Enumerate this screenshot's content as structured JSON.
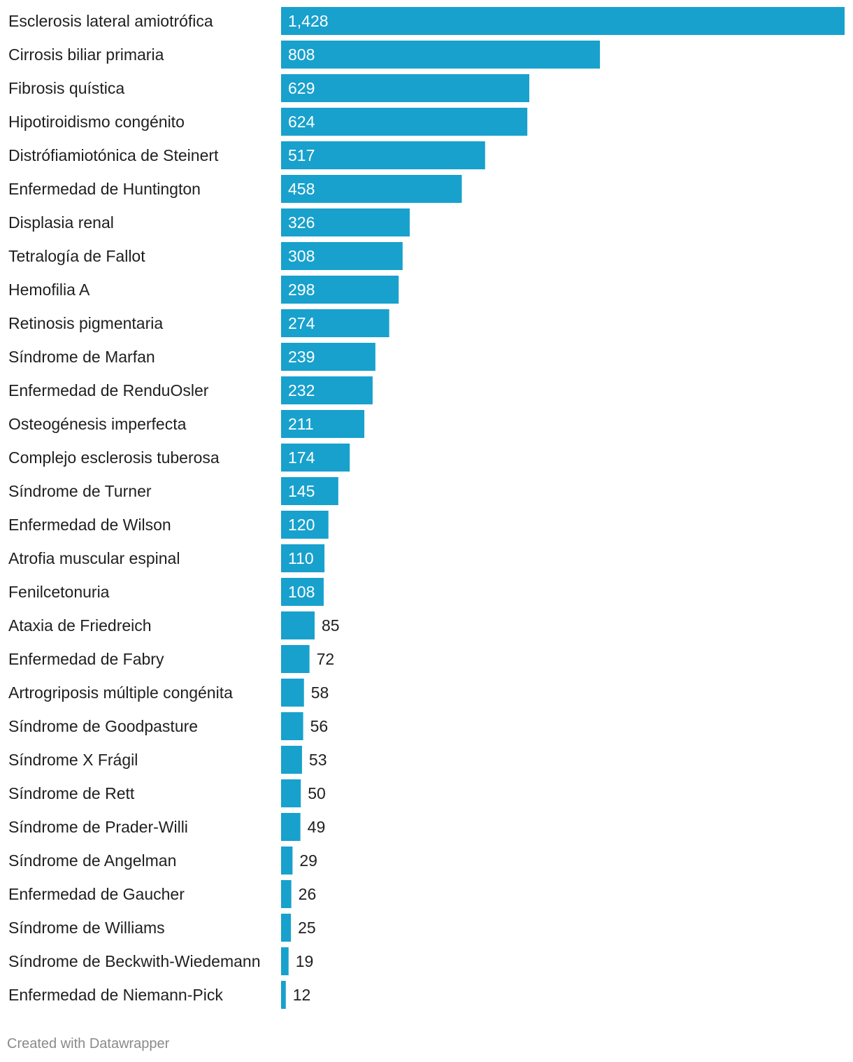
{
  "chart_data": {
    "type": "bar",
    "orientation": "horizontal",
    "categories": [
      "Esclerosis lateral amiotrófica",
      "Cirrosis biliar primaria",
      "Fibrosis quística",
      "Hipotiroidismo congénito",
      "Distrófiamiotónica de Steinert",
      "Enfermedad de Huntington",
      "Displasia renal",
      "Tetralogía de Fallot",
      "Hemofilia A",
      "Retinosis pigmentaria",
      "Síndrome de Marfan",
      "Enfermedad de RenduOsler",
      "Osteogénesis imperfecta",
      "Complejo esclerosis tuberosa",
      "Síndrome de Turner",
      "Enfermedad de Wilson",
      "Atrofia muscular espinal",
      "Fenilcetonuria",
      "Ataxia de Friedreich",
      "Enfermedad de Fabry",
      "Artrogriposis múltiple congénita",
      "Síndrome de Goodpasture",
      "Síndrome X Frágil",
      "Síndrome de Rett",
      "Síndrome de Prader-Willi",
      "Síndrome de Angelman",
      "Enfermedad de Gaucher",
      "Síndrome de Williams",
      "Síndrome de Beckwith-Wiedemann",
      "Enfermedad de Niemann-Pick"
    ],
    "values": [
      1428,
      808,
      629,
      624,
      517,
      458,
      326,
      308,
      298,
      274,
      239,
      232,
      211,
      174,
      145,
      120,
      110,
      108,
      85,
      72,
      58,
      56,
      53,
      50,
      49,
      29,
      26,
      25,
      19,
      12
    ],
    "value_labels": [
      "1,428",
      "808",
      "629",
      "624",
      "517",
      "458",
      "326",
      "308",
      "298",
      "274",
      "239",
      "232",
      "211",
      "174",
      "145",
      "120",
      "110",
      "108",
      "85",
      "72",
      "58",
      "56",
      "53",
      "50",
      "49",
      "29",
      "26",
      "25",
      "19",
      "12"
    ],
    "xlim": [
      0,
      1428
    ],
    "grid": false,
    "bar_color": "#18a1cd"
  },
  "footer": {
    "credit": "Created with Datawrapper"
  }
}
